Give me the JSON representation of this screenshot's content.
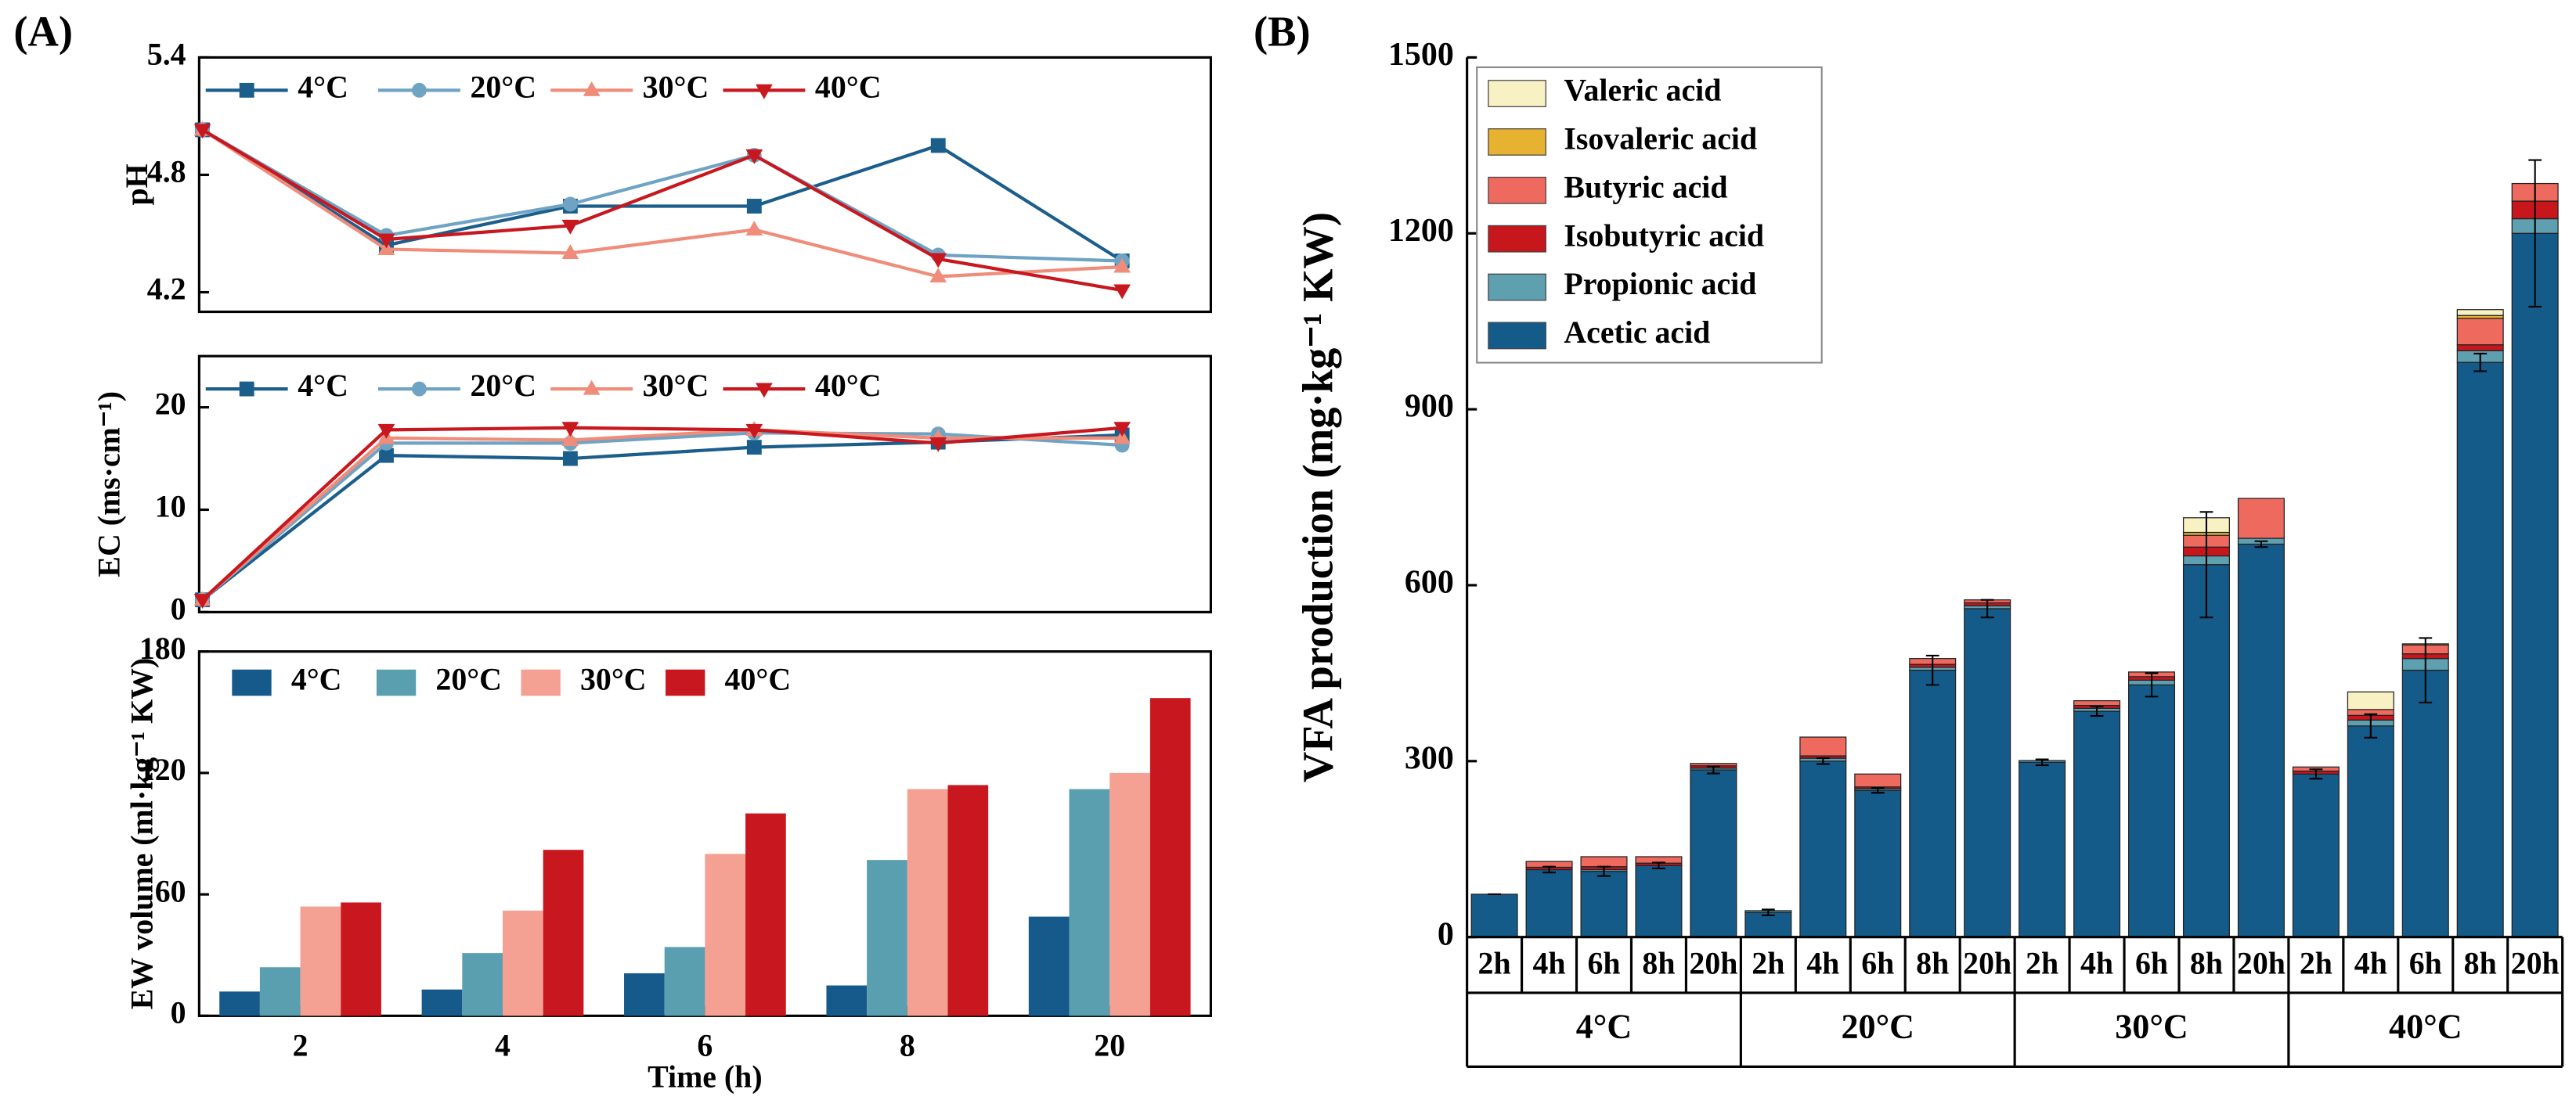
{
  "panel_labels": [
    "(A)",
    "(B)"
  ],
  "chart_data": [
    {
      "type": "line",
      "ylabel": "pH",
      "ylim": [
        4.1,
        5.4
      ],
      "yticks": [
        4.2,
        4.8,
        5.4
      ],
      "series": [
        {
          "name": "4°C",
          "color": "#1b5e8c",
          "marker": "square",
          "values": [
            5.03,
            4.44,
            4.64,
            4.64,
            4.95,
            4.36
          ]
        },
        {
          "name": "20°C",
          "color": "#6fa3c4",
          "marker": "circle",
          "values": [
            5.03,
            4.49,
            4.65,
            4.9,
            4.39,
            4.36
          ]
        },
        {
          "name": "30°C",
          "color": "#f08c7a",
          "marker": "triangle-up",
          "values": [
            5.03,
            4.42,
            4.4,
            4.52,
            4.28,
            4.33
          ]
        },
        {
          "name": "40°C",
          "color": "#c8171e",
          "marker": "triangle-down",
          "values": [
            5.03,
            4.47,
            4.54,
            4.9,
            4.37,
            4.21
          ]
        }
      ]
    },
    {
      "type": "line",
      "ylabel": "EC (ms·cm⁻¹)",
      "ylim": [
        0,
        25
      ],
      "yticks": [
        0,
        10,
        20
      ],
      "series": [
        {
          "name": "4°C",
          "color": "#1b5e8c",
          "marker": "square",
          "values": [
            1.2,
            15.3,
            15.0,
            16.1,
            16.6,
            17.3
          ]
        },
        {
          "name": "20°C",
          "color": "#6fa3c4",
          "marker": "circle",
          "values": [
            1.2,
            16.5,
            16.5,
            17.5,
            17.4,
            16.3
          ]
        },
        {
          "name": "30°C",
          "color": "#f08c7a",
          "marker": "triangle-up",
          "values": [
            1.2,
            17.0,
            16.8,
            17.8,
            17.0,
            17.0
          ]
        },
        {
          "name": "40°C",
          "color": "#c8171e",
          "marker": "triangle-down",
          "values": [
            1.2,
            17.8,
            18.0,
            17.8,
            16.5,
            18.0
          ]
        }
      ]
    },
    {
      "type": "bar",
      "ylabel": "EW volume (ml·kg⁻¹ KW)",
      "xlabel": "Time (h)",
      "categories": [
        "2",
        "4",
        "6",
        "8",
        "20"
      ],
      "ylim": [
        0,
        180
      ],
      "yticks": [
        0,
        60,
        120,
        180
      ],
      "series": [
        {
          "name": "4°C",
          "color": "#155a8a",
          "values": [
            12,
            13,
            21,
            15,
            49
          ]
        },
        {
          "name": "20°C",
          "color": "#5a9fb0",
          "values": [
            24,
            31,
            34,
            77,
            112
          ]
        },
        {
          "name": "30°C",
          "color": "#f4a093",
          "values": [
            54,
            52,
            80,
            112,
            120
          ]
        },
        {
          "name": "40°C",
          "color": "#c8171e",
          "values": [
            56,
            82,
            100,
            114,
            157
          ]
        }
      ]
    },
    {
      "type": "stacked_bar",
      "ylabel": "VFA production (mg·kg⁻¹ KW)",
      "ylim": [
        0,
        1500
      ],
      "yticks": [
        0,
        300,
        600,
        900,
        1200,
        1500
      ],
      "categories": [
        "2h",
        "4h",
        "6h",
        "8h",
        "20h",
        "2h",
        "4h",
        "6h",
        "8h",
        "20h",
        "2h",
        "4h",
        "6h",
        "8h",
        "20h",
        "2h",
        "4h",
        "6h",
        "8h",
        "20h"
      ],
      "groups": [
        "4°C",
        "20°C",
        "30°C",
        "40°C"
      ],
      "series": [
        {
          "name": "Acetic acid",
          "color": "#155b8a",
          "values": [
            73,
            115,
            112,
            122,
            285,
            42,
            300,
            250,
            455,
            560,
            298,
            385,
            430,
            635,
            670,
            278,
            360,
            455,
            980,
            1200
          ],
          "errors": [
            0,
            5,
            8,
            5,
            6,
            5,
            5,
            4,
            25,
            15,
            5,
            8,
            20,
            90,
            5,
            8,
            20,
            55,
            15,
            125
          ]
        },
        {
          "name": "Propionic acid",
          "color": "#5e9fb0",
          "values": [
            0,
            0,
            3,
            0,
            3,
            3,
            5,
            3,
            5,
            5,
            3,
            5,
            8,
            15,
            10,
            0,
            10,
            20,
            20,
            25
          ]
        },
        {
          "name": "Isobutyric acid",
          "color": "#c8161d",
          "values": [
            0,
            4,
            5,
            4,
            4,
            0,
            4,
            3,
            5,
            5,
            0,
            5,
            6,
            15,
            0,
            5,
            8,
            8,
            10,
            30
          ]
        },
        {
          "name": "Butyric acid",
          "color": "#ee6a5f",
          "values": [
            0,
            10,
            17,
            11,
            4,
            0,
            32,
            22,
            10,
            5,
            0,
            8,
            8,
            20,
            68,
            7,
            10,
            15,
            45,
            30
          ]
        },
        {
          "name": "Isovaleric acid",
          "color": "#e6b22f",
          "values": [
            0,
            0,
            0,
            0,
            0,
            0,
            0,
            0,
            0,
            0,
            0,
            0,
            0,
            5,
            0,
            0,
            0,
            2,
            5,
            0
          ]
        },
        {
          "name": "Valeric acid",
          "color": "#f7f1c4",
          "values": [
            0,
            0,
            0,
            0,
            0,
            0,
            0,
            0,
            0,
            0,
            0,
            0,
            0,
            25,
            0,
            0,
            30,
            0,
            10,
            0
          ]
        }
      ]
    }
  ]
}
